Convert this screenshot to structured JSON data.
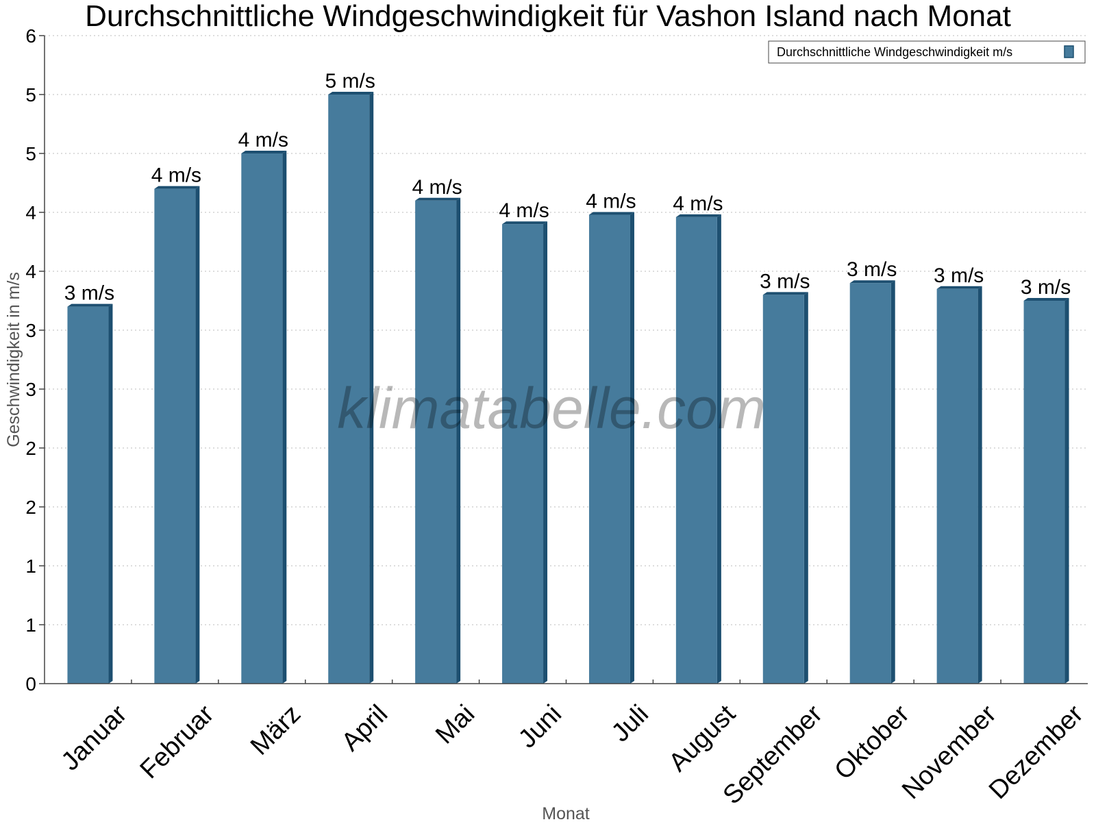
{
  "chart_data": {
    "type": "bar",
    "title": "Durchschnittliche Windgeschwindigkeit für Vashon Island nach Monat",
    "xlabel": "Monat",
    "ylabel": "Geschwindigkeit in m/s",
    "ylim": [
      0,
      5.5
    ],
    "yticks": [
      0,
      0.5,
      1,
      1.5,
      2,
      2.5,
      3,
      3.5,
      4,
      4.5,
      5,
      5.5
    ],
    "ytick_labels": [
      "0",
      "1",
      "1",
      "2",
      "2",
      "3",
      "3",
      "4",
      "4",
      "5",
      "5",
      "6"
    ],
    "grid": true,
    "legend_position": "top-right",
    "watermark": "klimatabelle.com",
    "categories": [
      "Januar",
      "Februar",
      "März",
      "April",
      "Mai",
      "Juni",
      "Juli",
      "August",
      "September",
      "Oktober",
      "November",
      "Dezember"
    ],
    "series": [
      {
        "name": "Durchschnittliche Windgeschwindigkeit m/s",
        "color": "#467b9c",
        "values": [
          3.2,
          4.2,
          4.5,
          5.0,
          4.1,
          3.9,
          3.98,
          3.96,
          3.3,
          3.4,
          3.35,
          3.25
        ],
        "data_labels": [
          "3 m/s",
          "4 m/s",
          "4 m/s",
          "5 m/s",
          "4 m/s",
          "4 m/s",
          "4 m/s",
          "4 m/s",
          "3 m/s",
          "3 m/s",
          "3 m/s",
          "3 m/s"
        ]
      }
    ]
  }
}
